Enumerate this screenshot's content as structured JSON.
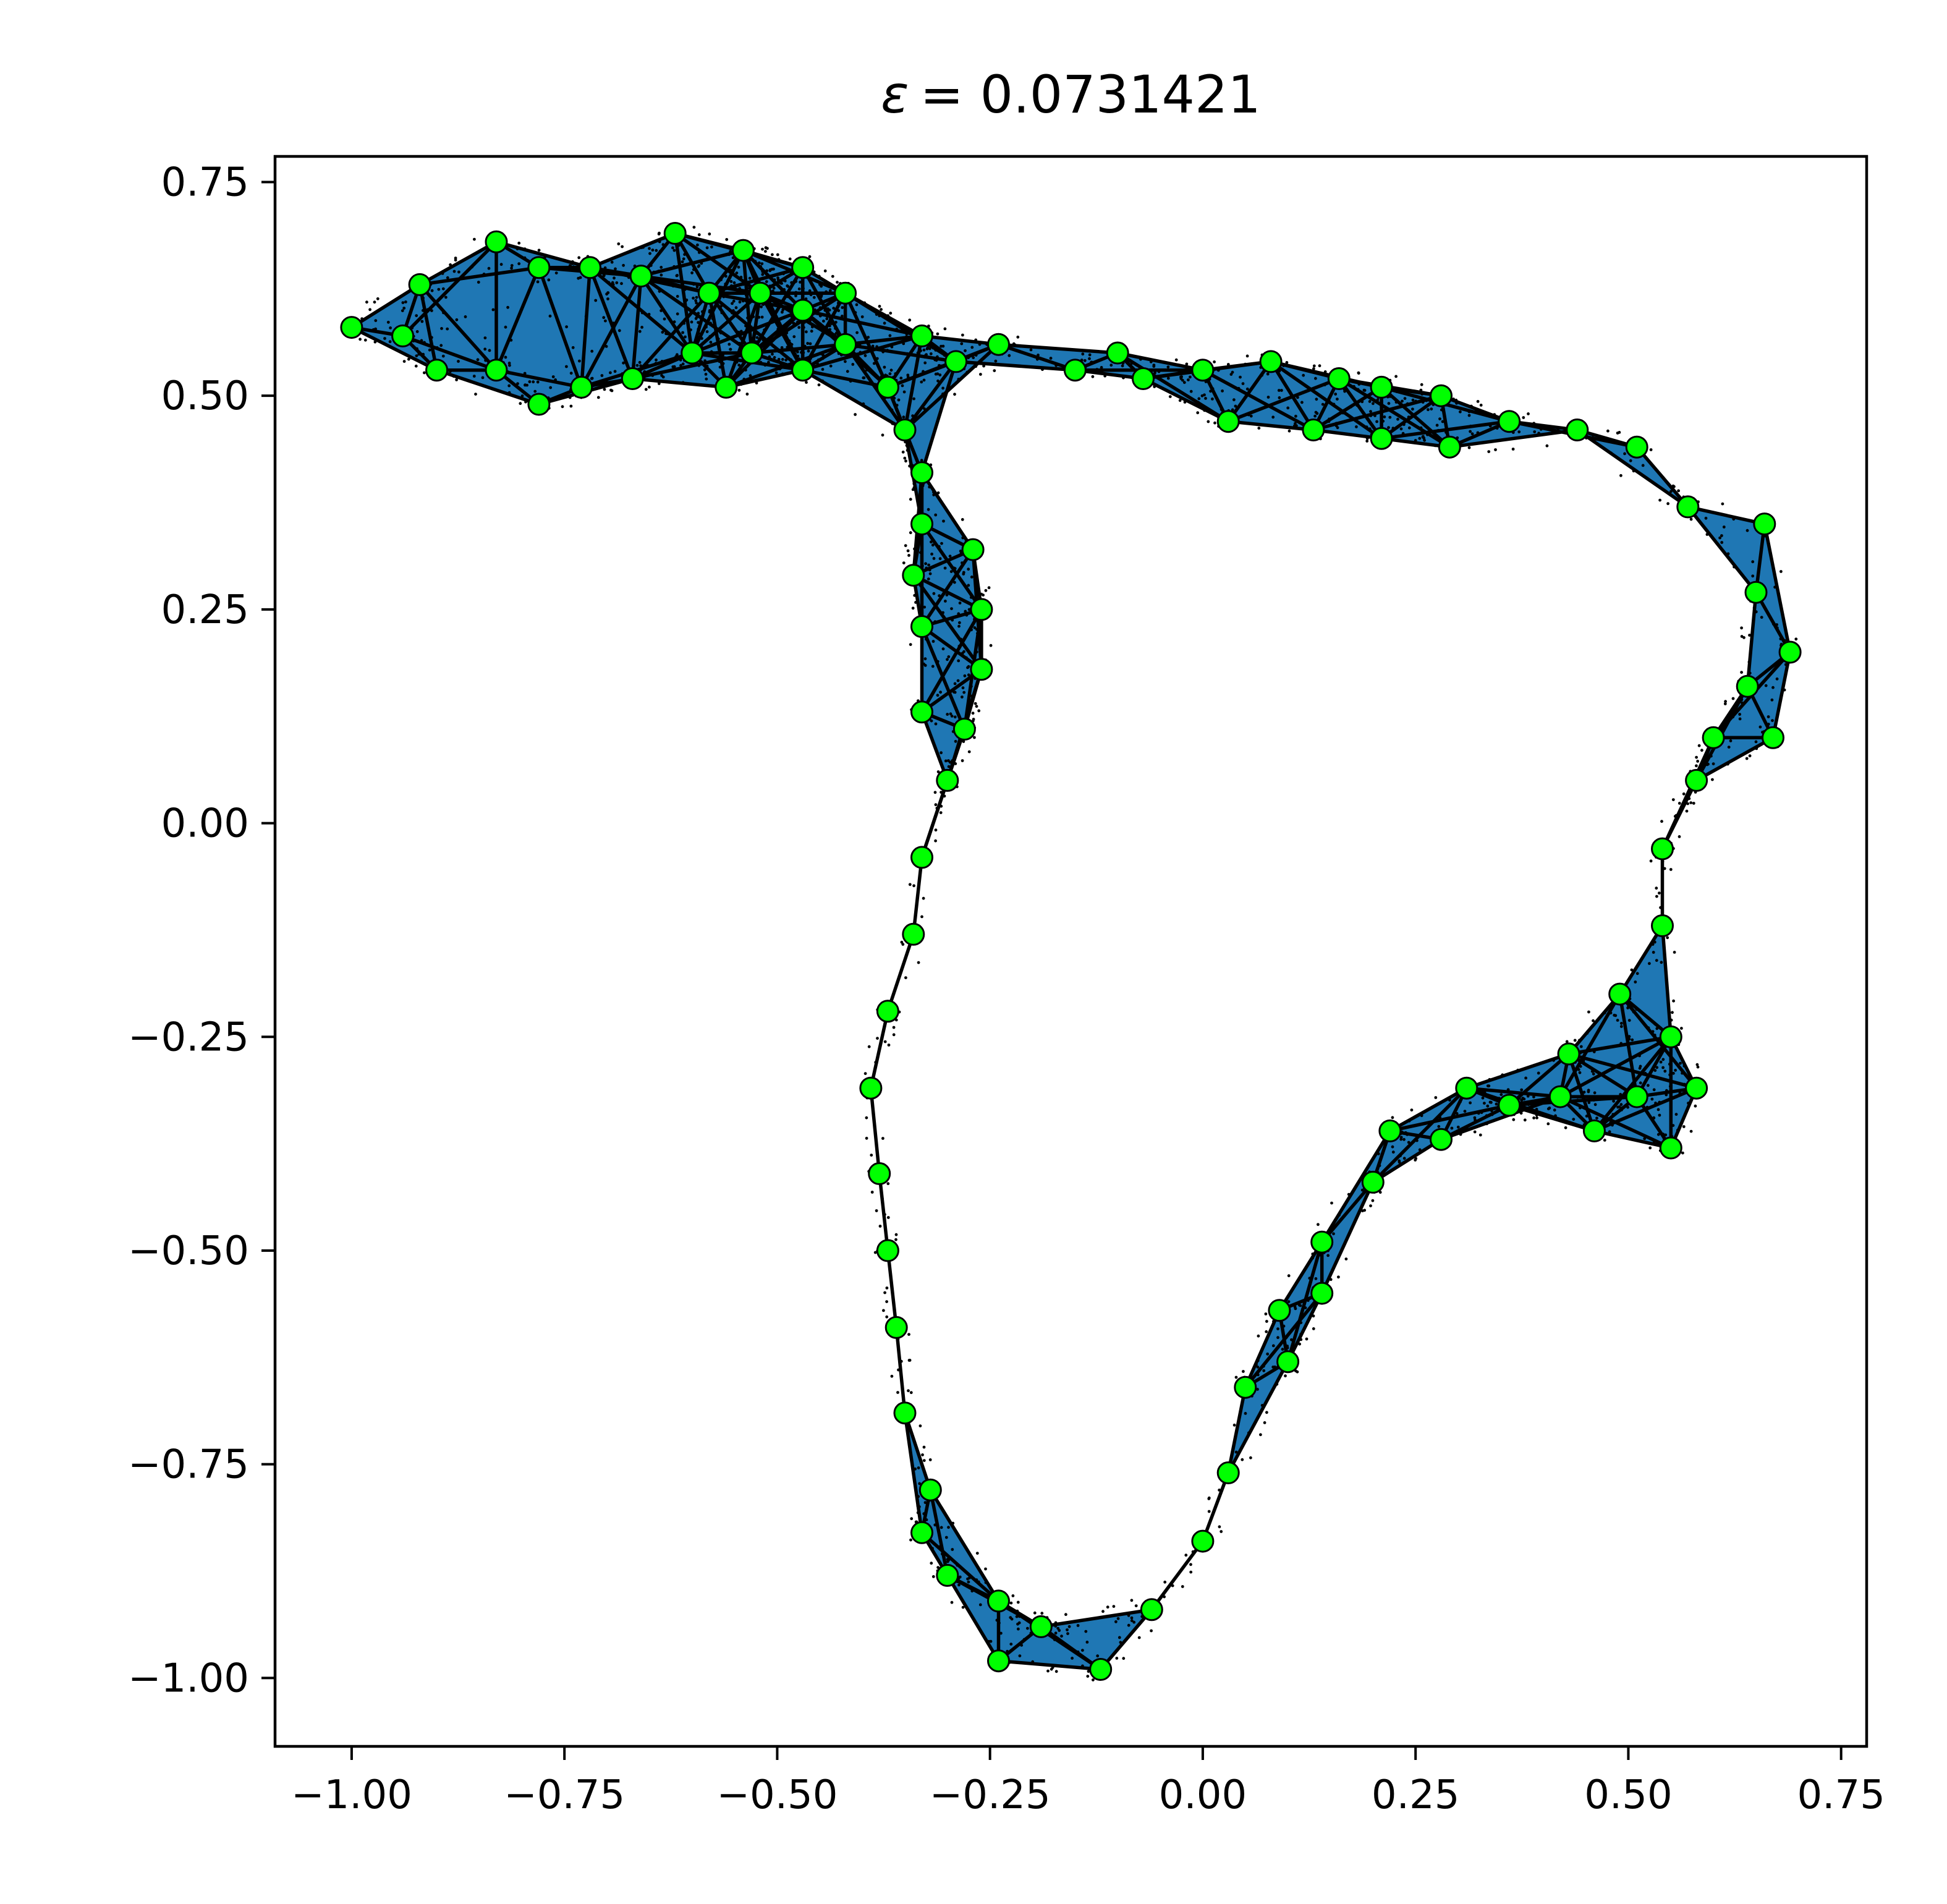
{
  "chart_data": {
    "type": "scatter",
    "title": "ε = 0.0731421",
    "title_symbol": "ε",
    "title_value": "= 0.0731421",
    "xlabel": "",
    "ylabel": "",
    "xlim": [
      -1.09,
      0.78
    ],
    "ylim": [
      -1.08,
      0.78
    ],
    "xticks": [
      -1.0,
      -0.75,
      -0.5,
      -0.25,
      0.0,
      0.25,
      0.5,
      0.75
    ],
    "xtick_labels": [
      "−1.00",
      "−0.75",
      "−0.50",
      "−0.25",
      "0.00",
      "0.25",
      "0.50",
      "0.75"
    ],
    "yticks": [
      0.75,
      0.5,
      0.25,
      0.0,
      -0.25,
      -0.5,
      -0.75,
      -1.0
    ],
    "ytick_labels": [
      "0.75",
      "0.50",
      "0.25",
      "0.00",
      "−0.25",
      "−0.50",
      "−0.75",
      "−1.00"
    ],
    "grid": false,
    "colors": {
      "fill": "#1f77b4",
      "edge": "#000000",
      "landmark": "#00ff00",
      "sample": "#000000"
    },
    "landmarks": [
      {
        "x": -1.0,
        "y": 0.58
      },
      {
        "x": -0.94,
        "y": 0.57
      },
      {
        "x": -0.92,
        "y": 0.63
      },
      {
        "x": -0.9,
        "y": 0.53
      },
      {
        "x": -0.83,
        "y": 0.68
      },
      {
        "x": -0.83,
        "y": 0.53
      },
      {
        "x": -0.78,
        "y": 0.65
      },
      {
        "x": -0.78,
        "y": 0.49
      },
      {
        "x": -0.72,
        "y": 0.65
      },
      {
        "x": -0.73,
        "y": 0.51
      },
      {
        "x": -0.67,
        "y": 0.52
      },
      {
        "x": -0.66,
        "y": 0.64
      },
      {
        "x": -0.62,
        "y": 0.69
      },
      {
        "x": -0.6,
        "y": 0.55
      },
      {
        "x": -0.58,
        "y": 0.62
      },
      {
        "x": -0.56,
        "y": 0.51
      },
      {
        "x": -0.54,
        "y": 0.67
      },
      {
        "x": -0.53,
        "y": 0.55
      },
      {
        "x": -0.52,
        "y": 0.62
      },
      {
        "x": -0.47,
        "y": 0.65
      },
      {
        "x": -0.47,
        "y": 0.6
      },
      {
        "x": -0.47,
        "y": 0.53
      },
      {
        "x": -0.42,
        "y": 0.62
      },
      {
        "x": -0.42,
        "y": 0.56
      },
      {
        "x": -0.37,
        "y": 0.51
      },
      {
        "x": -0.35,
        "y": 0.46
      },
      {
        "x": -0.33,
        "y": 0.57
      },
      {
        "x": -0.29,
        "y": 0.54
      },
      {
        "x": -0.24,
        "y": 0.56
      },
      {
        "x": -0.33,
        "y": 0.41
      },
      {
        "x": -0.33,
        "y": 0.35
      },
      {
        "x": -0.27,
        "y": 0.32
      },
      {
        "x": -0.34,
        "y": 0.29
      },
      {
        "x": -0.26,
        "y": 0.25
      },
      {
        "x": -0.33,
        "y": 0.23
      },
      {
        "x": -0.26,
        "y": 0.18
      },
      {
        "x": -0.33,
        "y": 0.13
      },
      {
        "x": -0.28,
        "y": 0.11
      },
      {
        "x": -0.3,
        "y": 0.05
      },
      {
        "x": -0.33,
        "y": -0.04
      },
      {
        "x": -0.34,
        "y": -0.13
      },
      {
        "x": -0.37,
        "y": -0.22
      },
      {
        "x": -0.39,
        "y": -0.31
      },
      {
        "x": -0.38,
        "y": -0.41
      },
      {
        "x": -0.37,
        "y": -0.5
      },
      {
        "x": -0.36,
        "y": -0.59
      },
      {
        "x": -0.35,
        "y": -0.69
      },
      {
        "x": -0.32,
        "y": -0.78
      },
      {
        "x": -0.33,
        "y": -0.83
      },
      {
        "x": -0.3,
        "y": -0.88
      },
      {
        "x": -0.24,
        "y": -0.91
      },
      {
        "x": -0.19,
        "y": -0.94
      },
      {
        "x": -0.24,
        "y": -0.98
      },
      {
        "x": -0.12,
        "y": -0.99
      },
      {
        "x": -0.06,
        "y": -0.92
      },
      {
        "x": 0.0,
        "y": -0.84
      },
      {
        "x": 0.03,
        "y": -0.76
      },
      {
        "x": 0.05,
        "y": -0.66
      },
      {
        "x": 0.1,
        "y": -0.63
      },
      {
        "x": 0.09,
        "y": -0.57
      },
      {
        "x": 0.14,
        "y": -0.55
      },
      {
        "x": 0.14,
        "y": -0.49
      },
      {
        "x": 0.2,
        "y": -0.42
      },
      {
        "x": 0.22,
        "y": -0.36
      },
      {
        "x": 0.28,
        "y": -0.37
      },
      {
        "x": 0.31,
        "y": -0.31
      },
      {
        "x": 0.36,
        "y": -0.33
      },
      {
        "x": 0.42,
        "y": -0.32
      },
      {
        "x": 0.43,
        "y": -0.27
      },
      {
        "x": 0.46,
        "y": -0.36
      },
      {
        "x": 0.49,
        "y": -0.2
      },
      {
        "x": 0.51,
        "y": -0.32
      },
      {
        "x": 0.55,
        "y": -0.25
      },
      {
        "x": 0.55,
        "y": -0.38
      },
      {
        "x": 0.58,
        "y": -0.31
      },
      {
        "x": 0.54,
        "y": -0.12
      },
      {
        "x": 0.54,
        "y": -0.03
      },
      {
        "x": 0.58,
        "y": 0.05
      },
      {
        "x": 0.6,
        "y": 0.1
      },
      {
        "x": 0.64,
        "y": 0.16
      },
      {
        "x": 0.67,
        "y": 0.1
      },
      {
        "x": 0.69,
        "y": 0.2
      },
      {
        "x": 0.65,
        "y": 0.27
      },
      {
        "x": 0.66,
        "y": 0.35
      },
      {
        "x": 0.57,
        "y": 0.37
      },
      {
        "x": 0.51,
        "y": 0.44
      },
      {
        "x": 0.44,
        "y": 0.46
      },
      {
        "x": 0.36,
        "y": 0.47
      },
      {
        "x": 0.28,
        "y": 0.5
      },
      {
        "x": 0.29,
        "y": 0.44
      },
      {
        "x": 0.21,
        "y": 0.51
      },
      {
        "x": 0.21,
        "y": 0.45
      },
      {
        "x": 0.16,
        "y": 0.52
      },
      {
        "x": 0.13,
        "y": 0.46
      },
      {
        "x": 0.08,
        "y": 0.54
      },
      {
        "x": 0.03,
        "y": 0.47
      },
      {
        "x": 0.0,
        "y": 0.53
      },
      {
        "x": -0.07,
        "y": 0.52
      },
      {
        "x": -0.1,
        "y": 0.55
      },
      {
        "x": -0.15,
        "y": 0.53
      }
    ]
  }
}
